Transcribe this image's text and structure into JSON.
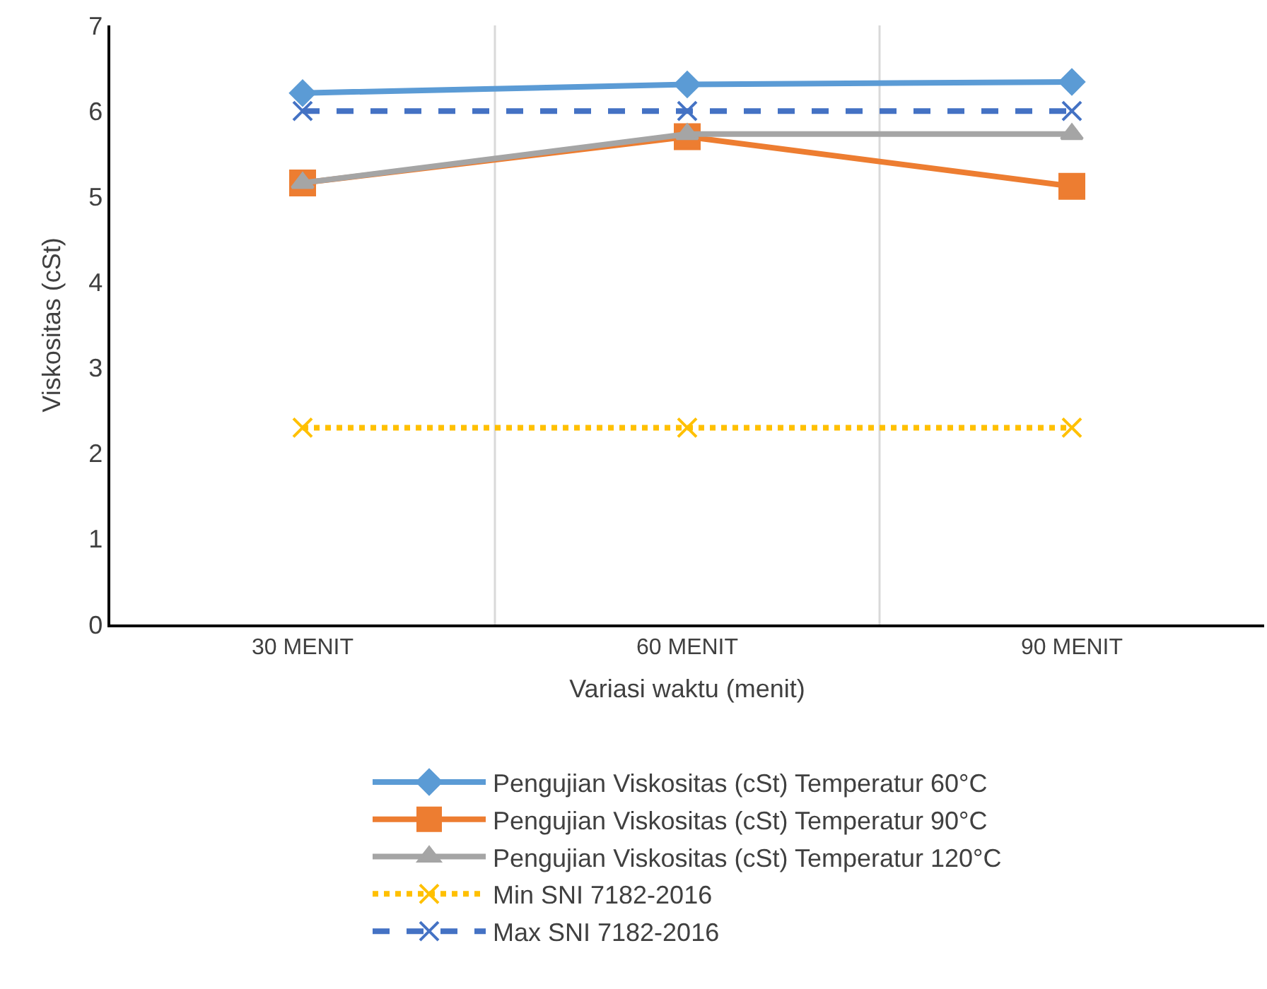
{
  "chart_data": {
    "type": "line",
    "xlabel": "Variasi waktu (menit)",
    "ylabel": "Viskositas (cSt)",
    "categories": [
      "30 MENIT",
      "60 MENIT",
      "90 MENIT"
    ],
    "ylim": [
      0,
      7
    ],
    "yticks": [
      0,
      1,
      2,
      3,
      4,
      5,
      6,
      7
    ],
    "grid": "x",
    "legend": "bottom",
    "series": [
      {
        "name": "Pengujian Viskositas (cSt) Temperatur 60°C",
        "color": "#5b9bd5",
        "values": [
          6.21,
          6.31,
          6.34
        ],
        "marker": "diamond",
        "line_style": "solid"
      },
      {
        "name": "Pengujian Viskositas (cSt) Temperatur 90°C",
        "color": "#ed7d31",
        "values": [
          5.16,
          5.7,
          5.12
        ],
        "marker": "square",
        "line_style": "solid"
      },
      {
        "name": "Pengujian Viskositas (cSt) Temperatur 120°C",
        "color": "#a5a5a5",
        "values": [
          5.16,
          5.73,
          5.73
        ],
        "marker": "triangle",
        "line_style": "solid"
      },
      {
        "name": "Min SNI 7182-2016",
        "color": "#ffc000",
        "values": [
          2.3,
          2.3,
          2.3
        ],
        "marker": "cross",
        "line_style": "dotted"
      },
      {
        "name": "Max SNI 7182-2016",
        "color": "#4472c4",
        "values": [
          6,
          6,
          6
        ],
        "marker": "cross",
        "line_style": "dashed"
      }
    ]
  }
}
